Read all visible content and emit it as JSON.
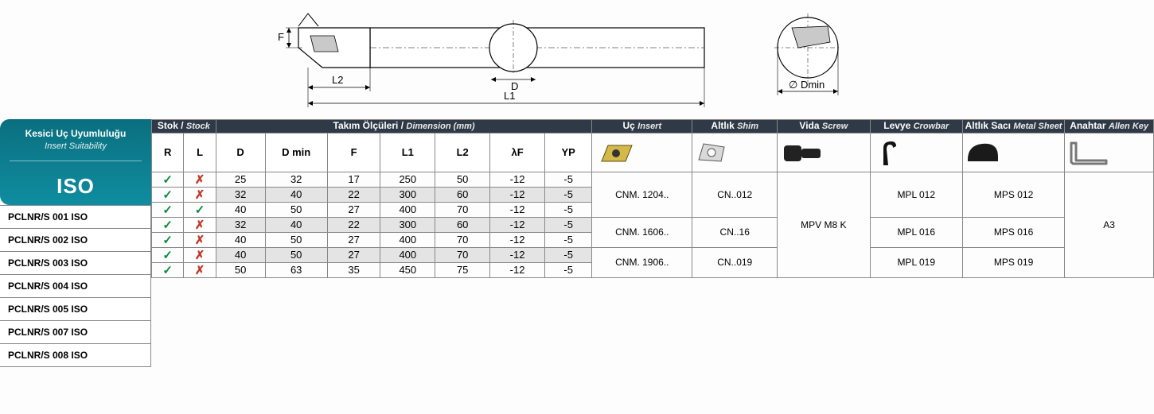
{
  "iso_header": {
    "title_tr": "Kesici Uç Uyumluluğu",
    "title_en": "Insert Suitability",
    "label": "ISO"
  },
  "header_groups": {
    "stock": {
      "tr": "Stok /",
      "en": "Stock"
    },
    "dim": {
      "tr": "Takım Ölçüleri /",
      "en": "Dimension (mm)"
    },
    "insert": {
      "tr": "Uç",
      "en": "Insert"
    },
    "shim": {
      "tr": "Altlık",
      "en": "Shim"
    },
    "screw": {
      "tr": "Vida",
      "en": "Screw"
    },
    "crow": {
      "tr": "Levye",
      "en": "Crowbar"
    },
    "sheet": {
      "tr": "Altlık Sacı",
      "en": "Metal Sheet"
    },
    "key": {
      "tr": "Anahtar",
      "en": "Allen Key"
    }
  },
  "sub_headers": {
    "R": "R",
    "L": "L",
    "D": "D",
    "Dmin": "D min",
    "F": "F",
    "L1": "L1",
    "L2": "L2",
    "lF": "λF",
    "YP": "YP"
  },
  "col_widths": {
    "R": 34,
    "L": 34,
    "D": 52,
    "Dmin": 66,
    "F": 56,
    "L1": 58,
    "L2": 58,
    "lF": 58,
    "YP": 50,
    "insert": 106,
    "shim": 90,
    "screw": 98,
    "crow": 98,
    "sheet": 108,
    "key": 94
  },
  "rows": [
    {
      "name": "PCLNR/S 001 ISO",
      "R": "✓",
      "L": "✗",
      "D": 25,
      "Dmin": 32,
      "F": 17,
      "L1": 250,
      "L2": 50,
      "lF": -12,
      "YP": -5,
      "shade": false
    },
    {
      "name": "PCLNR/S 002 ISO",
      "R": "✓",
      "L": "✗",
      "D": 32,
      "Dmin": 40,
      "F": 22,
      "L1": 300,
      "L2": 60,
      "lF": -12,
      "YP": -5,
      "shade": true
    },
    {
      "name": "PCLNR/S 003 ISO",
      "R": "✓",
      "L": "✓",
      "D": 40,
      "Dmin": 50,
      "F": 27,
      "L1": 400,
      "L2": 70,
      "lF": -12,
      "YP": -5,
      "shade": false
    },
    {
      "name": "PCLNR/S 004 ISO",
      "R": "✓",
      "L": "✗",
      "D": 32,
      "Dmin": 40,
      "F": 22,
      "L1": 300,
      "L2": 60,
      "lF": -12,
      "YP": -5,
      "shade": true
    },
    {
      "name": "PCLNR/S 005 ISO",
      "R": "✓",
      "L": "✗",
      "D": 40,
      "Dmin": 50,
      "F": 27,
      "L1": 400,
      "L2": 70,
      "lF": -12,
      "YP": -5,
      "shade": false
    },
    {
      "name": "PCLNR/S 007 ISO",
      "R": "✓",
      "L": "✗",
      "D": 40,
      "Dmin": 50,
      "F": 27,
      "L1": 400,
      "L2": 70,
      "lF": -12,
      "YP": -5,
      "shade": true
    },
    {
      "name": "PCLNR/S 008 ISO",
      "R": "✓",
      "L": "✗",
      "D": 50,
      "Dmin": 63,
      "F": 35,
      "L1": 450,
      "L2": 75,
      "lF": -12,
      "YP": -5,
      "shade": false
    }
  ],
  "part_groups": {
    "insert": [
      {
        "span": 3,
        "text": "CNM. 1204.."
      },
      {
        "span": 2,
        "text": "CNM. 1606.."
      },
      {
        "span": 2,
        "text": "CNM. 1906.."
      }
    ],
    "shim": [
      {
        "span": 3,
        "text": "CN..012"
      },
      {
        "span": 2,
        "text": "CN..16"
      },
      {
        "span": 2,
        "text": "CN..019"
      }
    ],
    "screw": [
      {
        "span": 7,
        "text": "MPV M8 K"
      }
    ],
    "crow": [
      {
        "span": 3,
        "text": "MPL 012"
      },
      {
        "span": 2,
        "text": "MPL 016"
      },
      {
        "span": 2,
        "text": "MPL 019"
      }
    ],
    "sheet": [
      {
        "span": 3,
        "text": "MPS 012"
      },
      {
        "span": 2,
        "text": "MPS 016"
      },
      {
        "span": 2,
        "text": "MPS 019"
      }
    ],
    "key": [
      {
        "span": 7,
        "text": "A3"
      }
    ]
  },
  "diagram_labels": {
    "F": "F",
    "L2": "L2",
    "D": "D",
    "L1": "L1",
    "Dmin": "Dmin",
    "diam": "∅"
  },
  "colors": {
    "header_bg": "#2f3a46",
    "teal_top": "#0a6f7f",
    "teal_bot": "#0f8da0",
    "border": "#888888",
    "shade": "#e4e4e4",
    "tick": "#0a8a3f",
    "cross": "#c0392b"
  },
  "fonts": {
    "base": 13,
    "header": 12,
    "iso_label": 26
  }
}
